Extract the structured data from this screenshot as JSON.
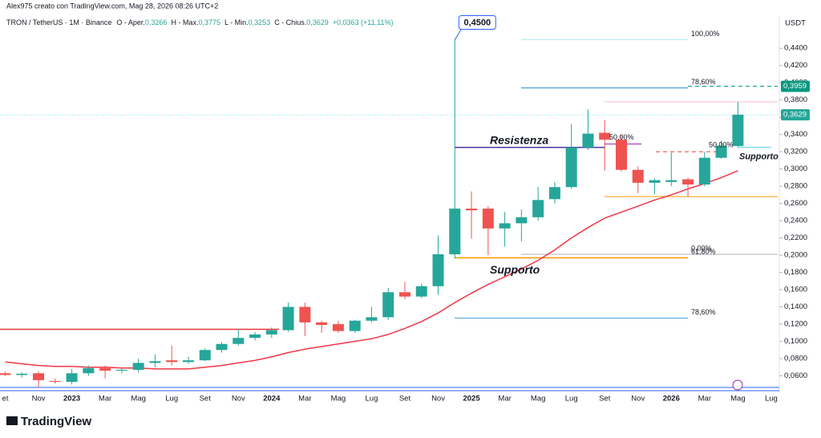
{
  "header": {
    "credit": "Alex975 creato con TradingView.com, Mag 28, 2026 08:26 UTC+2",
    "symbol": "TRON / TetherUS · 1M · Binance",
    "open_label": "O - Aper.",
    "open": "0,3266",
    "high_label": "H - Max.",
    "high": "0,3775",
    "low_label": "L - Min.",
    "low": "0,3253",
    "close_label": "C - Chius.",
    "close": "0,3629",
    "change": "+0,0363 (+11,11%)"
  },
  "footer": {
    "brand": "TradingView"
  },
  "chart_data": {
    "type": "candlestick",
    "y_unit": "USDT",
    "categories": [
      "et",
      null,
      "Nov",
      null,
      "2023",
      null,
      "Mar",
      null,
      "Mag",
      null,
      "Lug",
      null,
      "Set",
      null,
      "Nov",
      null,
      "2024",
      null,
      "Mar",
      null,
      "Mag",
      null,
      "Lug",
      null,
      "Set",
      null,
      "Nov",
      null,
      "2025",
      null,
      "Mar",
      null,
      "Mag",
      null,
      "Lug",
      null,
      "Set",
      null,
      "Nov",
      null,
      "2026",
      null,
      "Mar",
      null,
      "Mag",
      null,
      "Lug"
    ],
    "open": [
      0.063,
      0.061,
      0.063,
      0.054,
      0.053,
      0.063,
      0.069,
      0.066,
      0.067,
      0.075,
      0.078,
      0.076,
      0.078,
      0.09,
      0.097,
      0.104,
      0.108,
      0.113,
      0.14,
      0.122,
      0.12,
      0.112,
      0.124,
      0.128,
      0.157,
      0.152,
      0.164,
      0.201,
      0.254,
      0.254,
      0.231,
      0.237,
      0.244,
      0.265,
      0.279,
      0.325,
      0.342,
      0.334,
      0.299,
      0.284,
      0.285,
      0.288,
      0.282,
      0.313,
      0.3266,
      null,
      null
    ],
    "high": [
      0.065,
      0.064,
      0.065,
      0.057,
      0.068,
      0.072,
      0.072,
      0.069,
      0.08,
      0.085,
      0.095,
      0.082,
      0.092,
      0.099,
      0.114,
      0.111,
      0.116,
      0.145,
      0.145,
      0.124,
      0.124,
      0.125,
      0.14,
      0.162,
      0.169,
      0.167,
      0.223,
      0.45,
      0.274,
      0.257,
      0.25,
      0.253,
      0.279,
      0.285,
      0.352,
      0.369,
      0.357,
      0.34,
      0.303,
      0.289,
      0.319,
      0.29,
      0.32,
      0.333,
      0.3775,
      null,
      null
    ],
    "low": [
      0.06,
      0.058,
      0.046,
      0.051,
      0.05,
      0.06,
      0.057,
      0.063,
      0.064,
      0.07,
      0.072,
      0.074,
      0.077,
      0.087,
      0.095,
      0.101,
      0.104,
      0.111,
      0.106,
      0.11,
      0.11,
      0.11,
      0.122,
      0.125,
      0.149,
      0.15,
      0.154,
      0.196,
      0.219,
      0.2,
      0.21,
      0.216,
      0.24,
      0.26,
      0.277,
      0.322,
      0.298,
      0.297,
      0.272,
      0.271,
      0.28,
      0.268,
      0.28,
      0.312,
      0.3253,
      null,
      null
    ],
    "close": [
      0.061,
      0.0625,
      0.055,
      0.053,
      0.063,
      0.069,
      0.066,
      0.067,
      0.075,
      0.077,
      0.076,
      0.078,
      0.09,
      0.097,
      0.104,
      0.108,
      0.113,
      0.14,
      0.122,
      0.119,
      0.112,
      0.124,
      0.128,
      0.157,
      0.152,
      0.164,
      0.201,
      0.254,
      0.252,
      0.231,
      0.237,
      0.244,
      0.264,
      0.279,
      0.325,
      0.341,
      0.334,
      0.299,
      0.284,
      0.287,
      0.287,
      0.282,
      0.313,
      0.327,
      0.3629,
      null,
      null
    ],
    "up_color": "#26a69a",
    "down_color": "#ef5350",
    "moving_average": {
      "color": "#f23645",
      "values": [
        0.076,
        0.074,
        0.072,
        0.071,
        0.071,
        0.07,
        0.07,
        0.069,
        0.069,
        0.068,
        0.068,
        0.068,
        0.07,
        0.072,
        0.075,
        0.078,
        0.082,
        0.087,
        0.091,
        0.094,
        0.097,
        0.1,
        0.103,
        0.108,
        0.115,
        0.123,
        0.133,
        0.145,
        0.156,
        0.166,
        0.175,
        0.184,
        0.194,
        0.206,
        0.22,
        0.232,
        0.243,
        0.25,
        0.257,
        0.264,
        0.27,
        0.277,
        0.283,
        0.29,
        0.298,
        null,
        null
      ]
    },
    "ylim": [
      0.04,
      0.47
    ],
    "yticks": [
      {
        "value": 0.06,
        "label": "0,0600"
      },
      {
        "value": 0.08,
        "label": "0,0800"
      },
      {
        "value": 0.1,
        "label": "0,1000"
      },
      {
        "value": 0.12,
        "label": "0,1200"
      },
      {
        "value": 0.14,
        "label": "0,1400"
      },
      {
        "value": 0.16,
        "label": "0,1600"
      },
      {
        "value": 0.18,
        "label": "0,1800"
      },
      {
        "value": 0.2,
        "label": "0,2000"
      },
      {
        "value": 0.22,
        "label": "0,2200"
      },
      {
        "value": 0.24,
        "label": "0,2400"
      },
      {
        "value": 0.26,
        "label": "0,2600"
      },
      {
        "value": 0.28,
        "label": "0,2800"
      },
      {
        "value": 0.3,
        "label": "0,3000"
      },
      {
        "value": 0.32,
        "label": "0,3200"
      },
      {
        "value": 0.34,
        "label": "0,3400"
      },
      {
        "value": 0.36,
        "label": "0,3600"
      },
      {
        "value": 0.38,
        "label": "0,3800"
      },
      {
        "value": 0.4,
        "label": "0,4000"
      },
      {
        "value": 0.42,
        "label": "0,4200"
      },
      {
        "value": 0.44,
        "label": "0,4400"
      }
    ],
    "levels": [
      {
        "value": 0.114,
        "color": "#e53935"
      },
      {
        "value": 0.325,
        "color": "#4a3aa8",
        "label": "Resistenza",
        "label_color": "#b04bc0"
      },
      {
        "value": 0.197,
        "color": "#ff9800",
        "label": "Supporto",
        "label_color": "#2f44c9",
        "tag": "61,80%"
      },
      {
        "value": 0.45,
        "color": "#b2ebf2",
        "tag": "100,00%"
      },
      {
        "value": 0.394,
        "color": "#1f8fc4",
        "tag": "78,60%"
      },
      {
        "value": 0.127,
        "color": "#4aa3d8",
        "tag": "78,60%"
      },
      {
        "value": 0.201,
        "color": "#b0b0b0",
        "tag": "0,00%"
      },
      {
        "value": 0.378,
        "color": "#f8bbd0"
      },
      {
        "value": 0.268,
        "color": "#ff9800"
      },
      {
        "value": 0.32,
        "color": "#e53935",
        "tag": "50,00%",
        "dashed": true
      },
      {
        "value": 0.329,
        "color": "#9c27b0",
        "tag": "50,00%"
      },
      {
        "value": 0.396,
        "color": "#089981",
        "dashed": true
      },
      {
        "value": 0.325,
        "color": "#4dd0e1",
        "label": "Supporto",
        "label_color": "#26b5c9"
      }
    ],
    "price_tags": [
      {
        "value": 0.3959,
        "label": "0,3959",
        "color": "#089981"
      },
      {
        "value": 0.3629,
        "label": "0,3629",
        "color": "#26a69a"
      }
    ],
    "callout": {
      "value": 0.45,
      "label": "0,4500"
    }
  }
}
